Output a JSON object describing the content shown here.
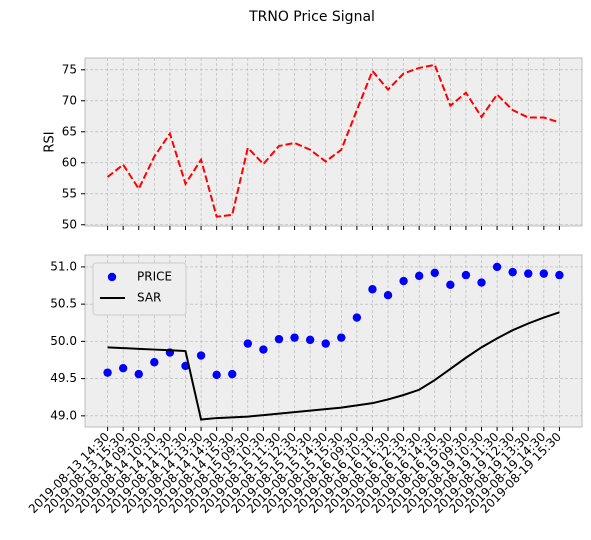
{
  "title": "TRNO Price Signal",
  "chart_data": [
    {
      "type": "line",
      "ylabel": "RSI",
      "color": "#ff0000",
      "linestyle": "dashed",
      "grid": true,
      "values": [
        57.7,
        59.7,
        55.8,
        61.0,
        64.7,
        56.6,
        60.5,
        51.3,
        51.6,
        62.4,
        59.8,
        62.7,
        63.2,
        62.1,
        60.2,
        62.1,
        68.5,
        74.8,
        71.8,
        74.4,
        75.3,
        75.8,
        69.2,
        71.3,
        67.4,
        71.0,
        68.5,
        67.3,
        67.3,
        66.5
      ],
      "ylim": [
        49.8,
        76.9
      ],
      "yticks": [
        50,
        55,
        60,
        65,
        70,
        75
      ]
    },
    {
      "type": "line",
      "grid": true,
      "legend": "upper left",
      "categories": [
        "2019-08-13 14:30",
        "2019-08-13 15:30",
        "2019-08-14 09:30",
        "2019-08-14 10:30",
        "2019-08-14 11:30",
        "2019-08-14 12:30",
        "2019-08-14 13:30",
        "2019-08-14 14:30",
        "2019-08-14 15:30",
        "2019-08-15 09:30",
        "2019-08-15 10:30",
        "2019-08-15 11:30",
        "2019-08-15 12:30",
        "2019-08-15 13:30",
        "2019-08-15 14:30",
        "2019-08-15 15:30",
        "2019-08-16 09:30",
        "2019-08-16 10:30",
        "2019-08-16 11:30",
        "2019-08-16 12:30",
        "2019-08-16 13:30",
        "2019-08-16 14:30",
        "2019-08-16 15:30",
        "2019-08-19 09:30",
        "2019-08-19 10:30",
        "2019-08-19 11:30",
        "2019-08-19 12:30",
        "2019-08-19 13:30",
        "2019-08-19 14:30",
        "2019-08-19 15:30"
      ],
      "series": [
        {
          "name": "PRICE",
          "type": "scatter",
          "color": "#0000ff",
          "values": [
            49.58,
            49.64,
            49.56,
            49.72,
            49.85,
            49.67,
            49.81,
            49.55,
            49.56,
            49.97,
            49.89,
            50.03,
            50.05,
            50.02,
            49.97,
            50.05,
            50.32,
            50.7,
            50.62,
            50.81,
            50.88,
            50.92,
            50.76,
            50.89,
            50.79,
            51.0,
            50.93,
            50.91,
            50.91,
            50.89
          ]
        },
        {
          "name": "SAR",
          "type": "line",
          "color": "#000000",
          "values": [
            49.92,
            49.91,
            49.9,
            49.89,
            49.88,
            49.87,
            48.95,
            48.97,
            48.98,
            48.99,
            49.01,
            49.03,
            49.05,
            49.07,
            49.09,
            49.11,
            49.14,
            49.17,
            49.22,
            49.28,
            49.35,
            49.48,
            49.63,
            49.78,
            49.92,
            50.04,
            50.15,
            50.24,
            50.32,
            50.39
          ]
        }
      ],
      "ylim": [
        48.85,
        51.16
      ],
      "yticks": [
        {
          "value": 49.0,
          "label": "49.0"
        },
        {
          "value": 49.5,
          "label": "49.5"
        },
        {
          "value": 50.0,
          "label": "50.0"
        },
        {
          "value": 50.5,
          "label": "50.5"
        },
        {
          "value": 51.0,
          "label": "51.0"
        }
      ]
    }
  ]
}
